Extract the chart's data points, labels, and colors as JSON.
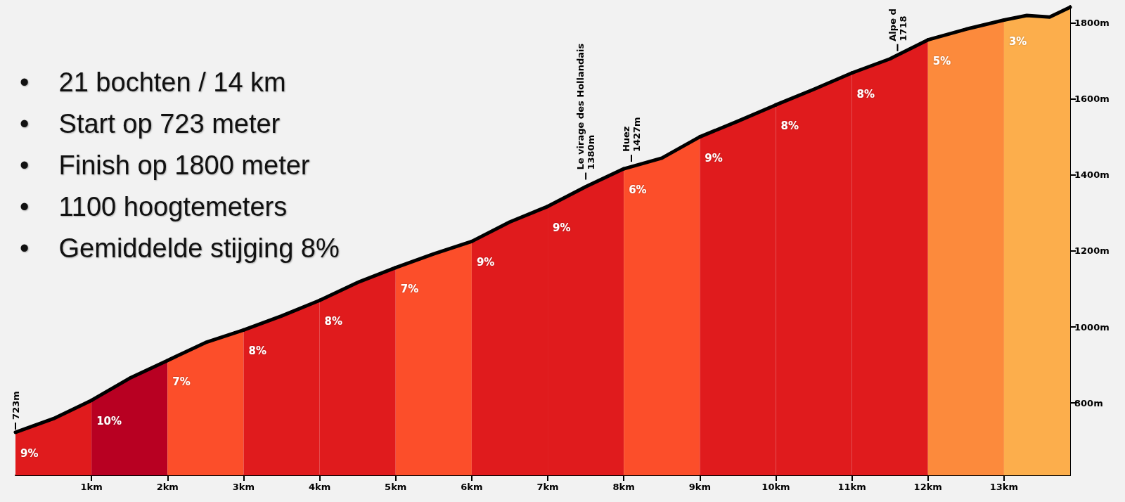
{
  "chart_data": {
    "type": "area",
    "xlim": [
      0,
      13.87
    ],
    "ylim": [
      610,
      1845
    ],
    "xticks": [
      {
        "value": 1,
        "label": "1km"
      },
      {
        "value": 2,
        "label": "2km"
      },
      {
        "value": 3,
        "label": "3km"
      },
      {
        "value": 4,
        "label": "4km"
      },
      {
        "value": 5,
        "label": "5km"
      },
      {
        "value": 6,
        "label": "6km"
      },
      {
        "value": 7,
        "label": "7km"
      },
      {
        "value": 8,
        "label": "8km"
      },
      {
        "value": 9,
        "label": "9km"
      },
      {
        "value": 10,
        "label": "10km"
      },
      {
        "value": 11,
        "label": "11km"
      },
      {
        "value": 12,
        "label": "12km"
      },
      {
        "value": 13,
        "label": "13km"
      }
    ],
    "yticks": [
      {
        "value": 800,
        "label": "800m"
      },
      {
        "value": 1000,
        "label": "1000m"
      },
      {
        "value": 1200,
        "label": "1200m"
      },
      {
        "value": 1400,
        "label": "1400m"
      },
      {
        "value": 1600,
        "label": "1600m"
      },
      {
        "value": 1800,
        "label": "1800m"
      }
    ],
    "grid": false,
    "legend": false,
    "marker": "none",
    "series": [
      {
        "name": "9%",
        "color": "#e01b1d",
        "x": [
          0,
          0.5,
          1
        ],
        "values": [
          723,
          759,
          807
        ]
      },
      {
        "name": "10%",
        "color": "#b80022",
        "x": [
          1,
          1.5,
          2
        ],
        "values": [
          807,
          865,
          912
        ]
      },
      {
        "name": "7%",
        "color": "#fc4e2a",
        "x": [
          2,
          2.5,
          3
        ],
        "values": [
          912,
          959,
          992
        ]
      },
      {
        "name": "8%",
        "color": "#e01b1d",
        "x": [
          3,
          3.5,
          4
        ],
        "values": [
          992,
          1029,
          1070
        ]
      },
      {
        "name": "8%",
        "color": "#e01b1d",
        "x": [
          4,
          4.5,
          5
        ],
        "values": [
          1070,
          1117,
          1156
        ]
      },
      {
        "name": "7%",
        "color": "#fc4e2a",
        "x": [
          5,
          5.5,
          6
        ],
        "values": [
          1156,
          1192,
          1225
        ]
      },
      {
        "name": "9%",
        "color": "#e01b1d",
        "x": [
          6,
          6.5,
          7
        ],
        "values": [
          1225,
          1276,
          1317
        ]
      },
      {
        "name": "9%",
        "color": "#e01b1d",
        "x": [
          7,
          7.5,
          8
        ],
        "values": [
          1317,
          1369,
          1416
        ]
      },
      {
        "name": "6%",
        "color": "#fc4e2a",
        "x": [
          8,
          8.5,
          9
        ],
        "values": [
          1416,
          1444,
          1500
        ]
      },
      {
        "name": "9%",
        "color": "#e01b1d",
        "x": [
          9,
          9.5,
          10
        ],
        "values": [
          1500,
          1541,
          1584
        ]
      },
      {
        "name": "8%",
        "color": "#e01b1d",
        "x": [
          10,
          10.5,
          11
        ],
        "values": [
          1584,
          1625,
          1668
        ]
      },
      {
        "name": "8%",
        "color": "#e01b1d",
        "x": [
          11,
          11.5,
          12
        ],
        "values": [
          1668,
          1705,
          1755
        ]
      },
      {
        "name": "5%",
        "color": "#fc8a3c",
        "x": [
          12,
          12.5,
          13
        ],
        "values": [
          1755,
          1783,
          1807
        ]
      },
      {
        "name": "3%",
        "color": "#fcae4c",
        "x": [
          13,
          13.3,
          13.6,
          13.87
        ],
        "values": [
          1807,
          1819,
          1815,
          1841
        ]
      }
    ],
    "annotations": [
      "•    21 bochten / 14 km",
      "•    Start op 723 meter",
      "•    Finish op 1800 meter",
      "•    1100 hoogtemeters",
      "•    Gemiddelde stijging 8%",
      {
        "text": "723m",
        "x": 0,
        "y": 723
      },
      {
        "text": "Le virage des Hollandais\n1380m",
        "x": 7.5,
        "y": 1380
      },
      {
        "text": "Huez\n1427m",
        "x": 8.1,
        "y": 1427
      },
      {
        "text": "Alpe d\n1718",
        "x": 11.6,
        "y": 1718
      }
    ]
  }
}
